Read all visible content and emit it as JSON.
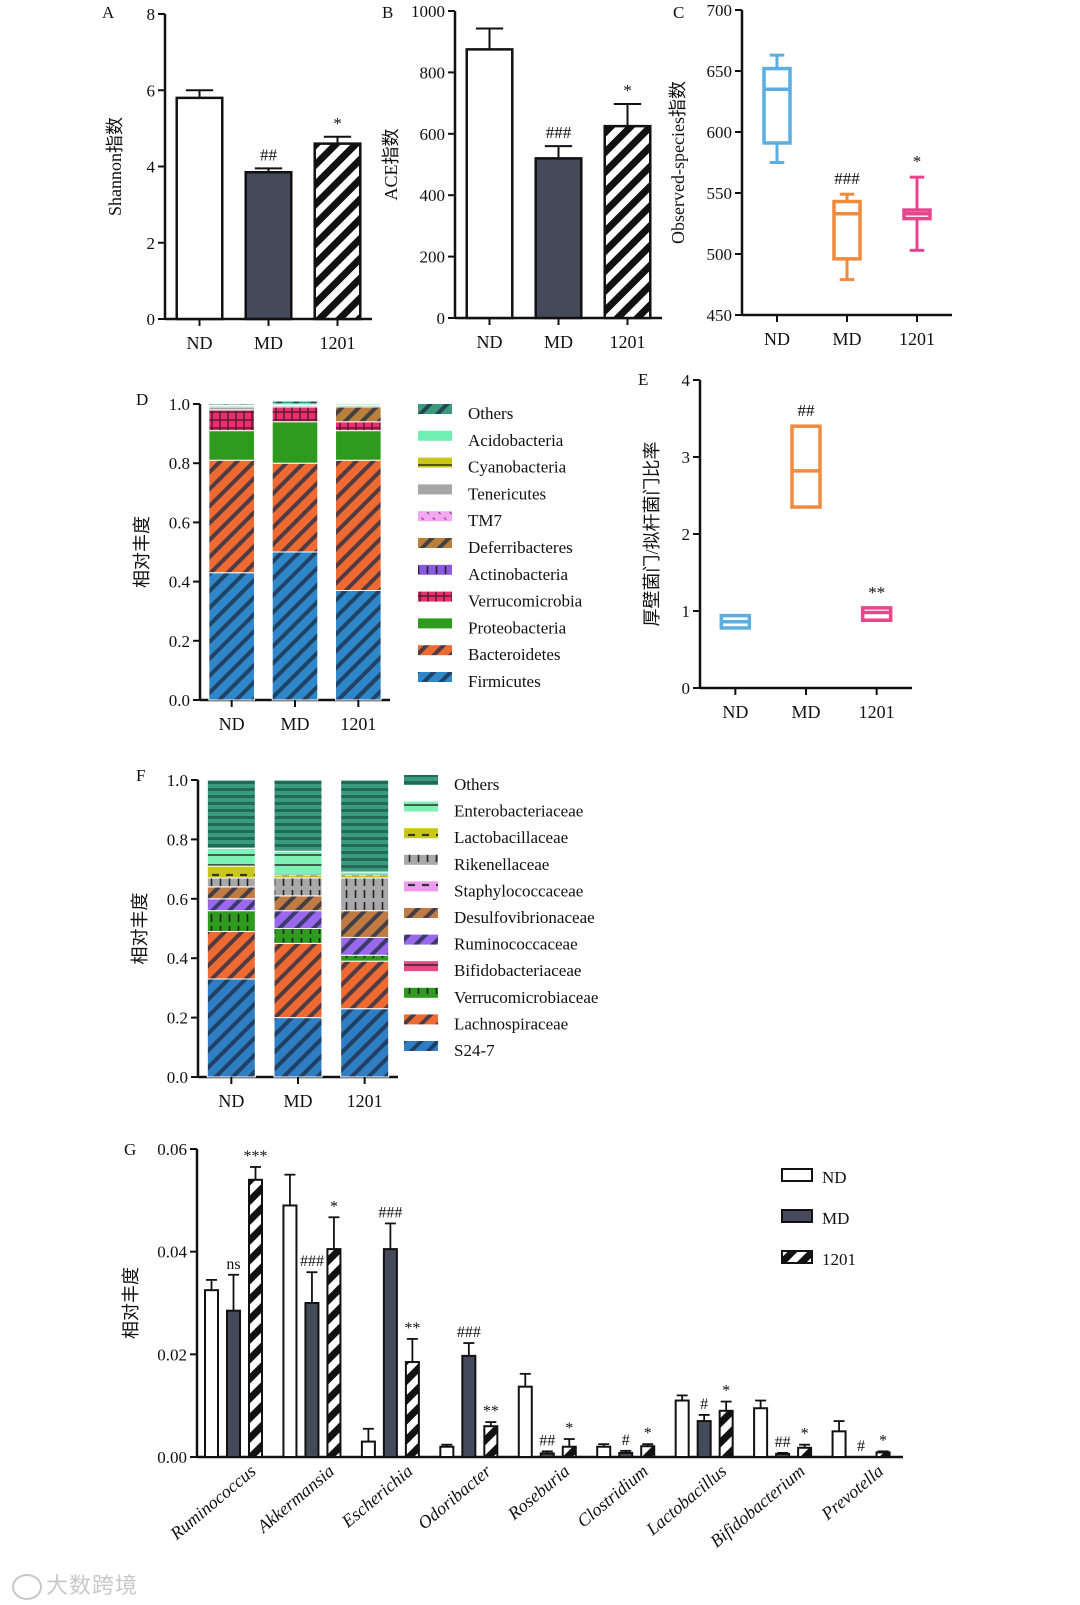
{
  "chart_data": [
    {
      "id": "A",
      "type": "bar",
      "panel_label": "A",
      "ylabel": "Shannon指数",
      "categories": [
        "ND",
        "MD",
        "1201"
      ],
      "values": [
        5.8,
        3.85,
        4.6
      ],
      "errors": [
        0.2,
        0.1,
        0.18
      ],
      "annotations": [
        "",
        "##",
        "*"
      ],
      "ylim": [
        0,
        8
      ],
      "yticks": [
        "0",
        "2",
        "4",
        "6",
        "8"
      ],
      "patterns": [
        "open",
        "solid",
        "hatch"
      ]
    },
    {
      "id": "B",
      "type": "bar",
      "panel_label": "B",
      "ylabel": "ACE指数",
      "categories": [
        "ND",
        "MD",
        "1201"
      ],
      "values": [
        875,
        520,
        625
      ],
      "errors": [
        68,
        40,
        72
      ],
      "annotations": [
        "",
        "###",
        "*"
      ],
      "ylim": [
        0,
        1000
      ],
      "yticks": [
        "0",
        "200",
        "400",
        "600",
        "800",
        "1000"
      ],
      "patterns": [
        "open",
        "solid",
        "hatch"
      ]
    },
    {
      "id": "C",
      "type": "box",
      "panel_label": "C",
      "ylabel": "Observed-species指数",
      "categories": [
        "ND",
        "MD",
        "1201"
      ],
      "ylim": [
        450,
        700
      ],
      "yticks": [
        "450",
        "500",
        "550",
        "600",
        "650",
        "700"
      ],
      "boxes": [
        {
          "min": 575,
          "q1": 591,
          "median": 635,
          "q3": 652,
          "max": 663
        },
        {
          "min": 479,
          "q1": 496,
          "median": 533,
          "q3": 543,
          "max": 549
        },
        {
          "min": 503,
          "q1": 529,
          "median": 533,
          "q3": 536,
          "max": 563
        }
      ],
      "colors": [
        "#5aaee0",
        "#f08a3c",
        "#e8468c"
      ],
      "annotations": [
        "",
        "###",
        "*"
      ]
    },
    {
      "id": "D",
      "type": "stacked_bar",
      "panel_label": "D",
      "ylabel": "相对丰度",
      "categories": [
        "ND",
        "MD",
        "1201"
      ],
      "ylim": [
        0,
        1
      ],
      "yticks": [
        "0.0",
        "0.2",
        "0.4",
        "0.6",
        "0.8",
        "1.0"
      ],
      "series": [
        {
          "name": "Firmicutes",
          "color": "#2f86c8",
          "hatch": "diag",
          "values": [
            0.43,
            0.5,
            0.37
          ]
        },
        {
          "name": "Bacteroidetes",
          "color": "#ee6a32",
          "hatch": "diag",
          "values": [
            0.38,
            0.3,
            0.44
          ]
        },
        {
          "name": "Proteobacteria",
          "color": "#2e9a1e",
          "hatch": "none",
          "values": [
            0.1,
            0.14,
            0.1
          ]
        },
        {
          "name": "Verrucomicrobia",
          "color": "#e8306e",
          "hatch": "grid",
          "values": [
            0.07,
            0.05,
            0.03
          ]
        },
        {
          "name": "Actinobacteria",
          "color": "#8a5be0",
          "hatch": "vlines",
          "values": [
            0.0,
            0.0,
            0.0
          ]
        },
        {
          "name": "Deferribacteres",
          "color": "#b8803a",
          "hatch": "diag",
          "values": [
            0.0,
            0.0,
            0.05
          ]
        },
        {
          "name": "TM7",
          "color": "#f4a8f0",
          "hatch": "dots",
          "values": [
            0.0,
            0.0,
            0.0
          ]
        },
        {
          "name": "Tenericutes",
          "color": "#a6a6a6",
          "hatch": "none",
          "values": [
            0.01,
            0.005,
            0.005
          ]
        },
        {
          "name": "Cyanobacteria",
          "color": "#c8c814",
          "hatch": "line",
          "values": [
            0.0,
            0.0,
            0.0
          ]
        },
        {
          "name": "Acidobacteria",
          "color": "#6ef0b4",
          "hatch": "none",
          "values": [
            0.005,
            0.005,
            0.005
          ]
        },
        {
          "name": "Others",
          "color": "#3a9a7c",
          "hatch": "diag",
          "values": [
            0.005,
            0.01,
            0.0
          ]
        }
      ]
    },
    {
      "id": "E",
      "type": "box",
      "panel_label": "E",
      "ylabel": "厚壁菌门/拟杆菌门比率",
      "categories": [
        "ND",
        "MD",
        "1201"
      ],
      "ylim": [
        0,
        4
      ],
      "yticks": [
        "0",
        "1",
        "2",
        "3",
        "4"
      ],
      "boxes": [
        {
          "min": 0.78,
          "q1": 0.78,
          "median": 0.86,
          "q3": 0.94,
          "max": 0.94
        },
        {
          "min": 2.35,
          "q1": 2.35,
          "median": 2.82,
          "q3": 3.4,
          "max": 3.4
        },
        {
          "min": 0.88,
          "q1": 0.88,
          "median": 0.98,
          "q3": 1.04,
          "max": 1.04
        }
      ],
      "colors": [
        "#5aaee0",
        "#f08a3c",
        "#e8468c"
      ],
      "annotations": [
        "",
        "##",
        "**"
      ]
    },
    {
      "id": "F",
      "type": "stacked_bar",
      "panel_label": "F",
      "ylabel": "相对丰度",
      "categories": [
        "ND",
        "MD",
        "1201"
      ],
      "ylim": [
        0,
        1
      ],
      "yticks": [
        "0.0",
        "0.2",
        "0.4",
        "0.6",
        "0.8",
        "1.0"
      ],
      "series": [
        {
          "name": "S24-7",
          "color": "#2f7ec4",
          "hatch": "diag",
          "values": [
            0.33,
            0.2,
            0.23
          ]
        },
        {
          "name": "Lachnospiraceae",
          "color": "#ee6a32",
          "hatch": "diag",
          "values": [
            0.16,
            0.25,
            0.16
          ]
        },
        {
          "name": "Verrucomicrobiaceae",
          "color": "#2e9a1e",
          "hatch": "vlines",
          "values": [
            0.07,
            0.05,
            0.02
          ]
        },
        {
          "name": "Bifidobacteriaceae",
          "color": "#e84a86",
          "hatch": "line",
          "values": [
            0.0,
            0.0,
            0.0
          ]
        },
        {
          "name": "Ruminococcaceae",
          "color": "#9a68ea",
          "hatch": "diag",
          "values": [
            0.04,
            0.06,
            0.06
          ]
        },
        {
          "name": "Desulfovibrionaceae",
          "color": "#c07a44",
          "hatch": "diag",
          "values": [
            0.04,
            0.05,
            0.09
          ]
        },
        {
          "name": "Staphylococcaceae",
          "color": "#ee9aee",
          "hatch": "dash",
          "values": [
            0.0,
            0.0,
            0.0
          ]
        },
        {
          "name": "Rikenellaceae",
          "color": "#a8a8a8",
          "hatch": "vlines",
          "values": [
            0.03,
            0.06,
            0.11
          ]
        },
        {
          "name": "Lactobacillaceae",
          "color": "#c8c814",
          "hatch": "dash",
          "values": [
            0.04,
            0.01,
            0.01
          ]
        },
        {
          "name": "Enterobacteriaceae",
          "color": "#7ef2b4",
          "hatch": "line",
          "values": [
            0.06,
            0.08,
            0.01
          ]
        },
        {
          "name": "Others",
          "color": "#3a9a7c",
          "hatch": "hlines",
          "values": [
            0.23,
            0.24,
            0.31
          ]
        }
      ]
    },
    {
      "id": "G",
      "type": "grouped_bar",
      "panel_label": "G",
      "ylabel": "相对丰度",
      "categories": [
        "Ruminococcus",
        "Akkermansia",
        "Escherichia",
        "Odoribacter",
        "Roseburia",
        "Clostridium",
        "Lactobacillus",
        "Bifidobacterium",
        "Prevotella"
      ],
      "ylim": [
        0,
        0.06
      ],
      "yticks": [
        "0.00",
        "0.02",
        "0.04",
        "0.06"
      ],
      "legend": {
        "position": "top-right"
      },
      "series": [
        {
          "name": "ND",
          "pattern": "open",
          "values": [
            0.0325,
            0.049,
            0.003,
            0.002,
            0.0137,
            0.002,
            0.011,
            0.0095,
            0.005
          ],
          "errors": [
            0.002,
            0.006,
            0.0025,
            0.0004,
            0.0025,
            0.0005,
            0.001,
            0.0015,
            0.002
          ],
          "annotations": [
            "",
            "",
            "",
            "",
            "",
            "",
            "",
            "",
            ""
          ]
        },
        {
          "name": "MD",
          "pattern": "solid",
          "values": [
            0.0285,
            0.03,
            0.0405,
            0.0197,
            0.0007,
            0.0008,
            0.007,
            0.0006,
            0.0
          ],
          "errors": [
            0.007,
            0.006,
            0.005,
            0.0025,
            0.0004,
            0.0004,
            0.0012,
            0.0002,
            0.0
          ],
          "annotations": [
            "ns",
            "###",
            "###",
            "###",
            "##",
            "#",
            "#",
            "##",
            "#"
          ]
        },
        {
          "name": "1201",
          "pattern": "hatch",
          "values": [
            0.054,
            0.0405,
            0.0185,
            0.006,
            0.002,
            0.0021,
            0.009,
            0.0018,
            0.0009
          ],
          "errors": [
            0.0025,
            0.0062,
            0.0045,
            0.0008,
            0.0015,
            0.0004,
            0.0018,
            0.0006,
            0.0002
          ],
          "annotations": [
            "***",
            "*",
            "**",
            "**",
            "*",
            "*",
            "*",
            "*",
            "*"
          ]
        }
      ]
    }
  ],
  "watermark": "大数跨境"
}
